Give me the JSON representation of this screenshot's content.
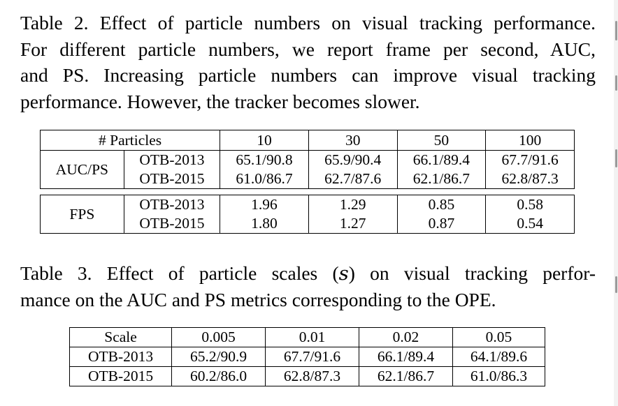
{
  "table2": {
    "caption_lines": [
      "Table 2. Effect of particle numbers on visual tracking performance.",
      "For different particle numbers, we report frame per second, AUC,",
      "and PS. Increasing particle numbers can improve visual tracking",
      "performance. However, the tracker becomes slower."
    ],
    "header": [
      "# Particles",
      "10",
      "30",
      "50",
      "100"
    ],
    "groups": [
      {
        "metric": "AUC/PS",
        "rows": [
          {
            "dataset": "OTB-2013",
            "values": [
              "65.1/90.8",
              "65.9/90.4",
              "66.1/89.4",
              "67.7/91.6"
            ]
          },
          {
            "dataset": "OTB-2015",
            "values": [
              "61.0/86.7",
              "62.7/87.6",
              "62.1/86.7",
              "62.8/87.3"
            ]
          }
        ]
      },
      {
        "metric": "FPS",
        "rows": [
          {
            "dataset": "OTB-2013",
            "values": [
              "1.96",
              "1.29",
              "0.85",
              "0.58"
            ]
          },
          {
            "dataset": "OTB-2015",
            "values": [
              "1.80",
              "1.27",
              "0.87",
              "0.54"
            ]
          }
        ]
      }
    ]
  },
  "table3": {
    "caption_lines": [
      "Table 3. Effect of particle scales (𝑠) on visual tracking perfor-",
      "mance on the AUC and PS metrics corresponding to the OPE."
    ],
    "header": [
      "Scale",
      "0.005",
      "0.01",
      "0.02",
      "0.05"
    ],
    "rows": [
      {
        "dataset": "OTB-2013",
        "values": [
          "65.2/90.9",
          "67.7/91.6",
          "66.1/89.4",
          "64.1/89.6"
        ]
      },
      {
        "dataset": "OTB-2015",
        "values": [
          "60.2/86.0",
          "62.8/87.3",
          "62.1/86.7",
          "61.0/86.3"
        ]
      }
    ]
  }
}
